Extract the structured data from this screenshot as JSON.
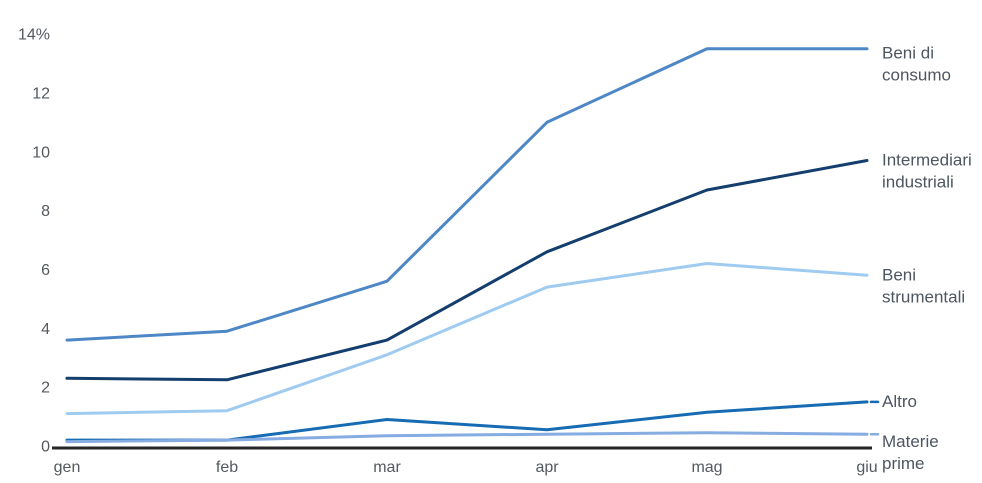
{
  "chart_data": {
    "type": "line",
    "title": "",
    "xlabel": "",
    "ylabel": "",
    "grid": false,
    "legend_position": "right-end-labels",
    "ylim": [
      0,
      14
    ],
    "categories": [
      "gen",
      "feb",
      "mar",
      "apr",
      "mag",
      "giu"
    ],
    "yticks": [
      {
        "value": 0,
        "label": "0"
      },
      {
        "value": 2,
        "label": "2"
      },
      {
        "value": 4,
        "label": "4"
      },
      {
        "value": 6,
        "label": "6"
      },
      {
        "value": 8,
        "label": "8"
      },
      {
        "value": 10,
        "label": "10"
      },
      {
        "value": 12,
        "label": "12"
      },
      {
        "value": 14,
        "label": "14%"
      }
    ],
    "series": [
      {
        "name": "Beni di consumo",
        "label_lines": [
          "Beni di",
          "consumo"
        ],
        "color": "#4e87c6",
        "values": [
          3.6,
          3.9,
          5.6,
          11.0,
          13.5,
          13.5
        ],
        "label_dy": 10,
        "leader_dash": false
      },
      {
        "name": "Intermediari industriali",
        "label_lines": [
          "Intermediari",
          "industriali"
        ],
        "color": "#133e6d",
        "values": [
          2.3,
          2.25,
          3.6,
          6.6,
          8.7,
          9.7
        ],
        "label_dy": 5,
        "leader_dash": false
      },
      {
        "name": "Beni strumentali",
        "label_lines": [
          "Beni",
          "strumentali"
        ],
        "color": "#9fcbf1",
        "values": [
          1.1,
          1.2,
          3.1,
          5.4,
          6.2,
          5.8
        ],
        "label_dy": 5,
        "leader_dash": false
      },
      {
        "name": "Altro",
        "label_lines": [
          "Altro"
        ],
        "color": "#176bb3",
        "values": [
          0.2,
          0.2,
          0.9,
          0.55,
          1.15,
          1.5
        ],
        "label_dy": 5,
        "leader_dash": true
      },
      {
        "name": "Materie prime",
        "label_lines": [
          "Materie",
          "prime"
        ],
        "color": "#86ace2",
        "values": [
          0.15,
          0.2,
          0.35,
          0.4,
          0.45,
          0.4
        ],
        "label_dy": 13,
        "leader_dash": true
      }
    ],
    "axis_color": "#262626",
    "tick_label_color": "#54585f",
    "series_label_color": "#4d5661"
  }
}
